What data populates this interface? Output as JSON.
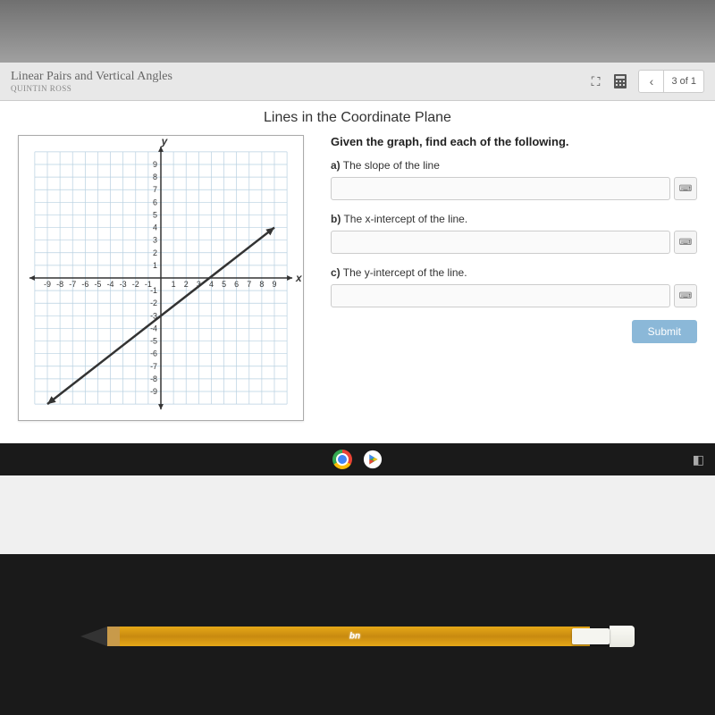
{
  "header": {
    "lesson_title": "Linear Pairs and Vertical Angles",
    "student_name": "QUINTIN ROSS",
    "page_indicator": "3 of 1",
    "nav_prev": "‹"
  },
  "section": {
    "title": "Lines in the Coordinate Plane"
  },
  "question": {
    "heading": "Given the graph, find each of the following.",
    "parts": [
      {
        "label": "a)",
        "text": "The slope of the line"
      },
      {
        "label": "b)",
        "text": "The x-intercept of the line."
      },
      {
        "label": "c)",
        "text": "The y-intercept of the line."
      }
    ],
    "submit_label": "Submit"
  },
  "graph": {
    "type": "line",
    "xlim": [
      -10,
      10
    ],
    "ylim": [
      -10,
      10
    ],
    "tick_step": 1,
    "x_tick_labels": [
      -9,
      -8,
      -7,
      -6,
      -5,
      -4,
      -3,
      -2,
      -1,
      1,
      2,
      3,
      4,
      5,
      6,
      7,
      8,
      9
    ],
    "y_tick_labels": [
      9,
      8,
      7,
      6,
      5,
      4,
      3,
      2,
      1,
      -1,
      -2,
      -3,
      -4,
      -5,
      -6,
      -7,
      -8,
      -9
    ],
    "x_axis_label": "x",
    "y_axis_label": "y",
    "grid_color": "#b8d0e0",
    "axis_color": "#333333",
    "line_color": "#333333",
    "background_color": "#ffffff",
    "line_width": 2.5,
    "line_points": [
      [
        -9,
        -10
      ],
      [
        9,
        4
      ]
    ],
    "arrow_size": 6
  },
  "pencil": {
    "logo": "bn"
  }
}
